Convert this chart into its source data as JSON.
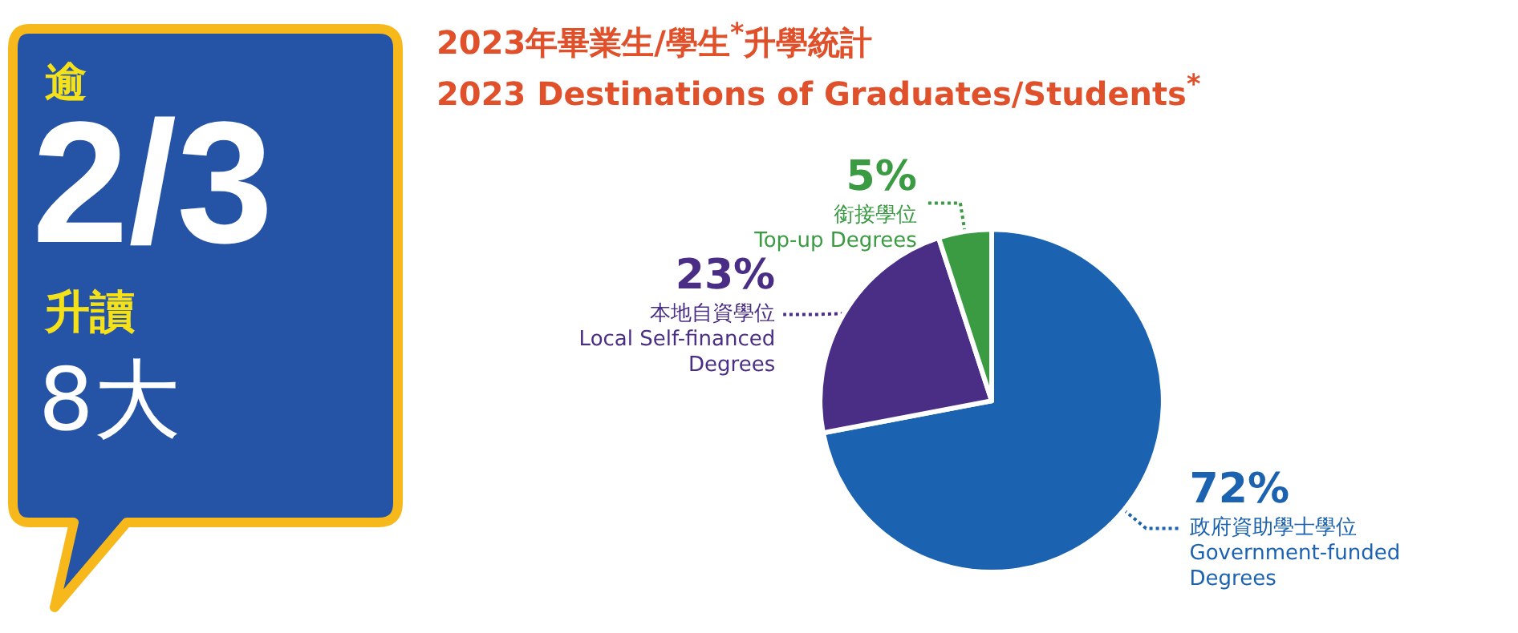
{
  "chart_data": {
    "type": "pie",
    "title": "2023年畢業生/學生$^{*}$升學統計",
    "subtitle": "2023 Destinations of Graduates/Students$^{*}$",
    "categories": [
      "政府資助學士學位\nGovernment-funded\nDegrees",
      "本地自資學位\nLocal Self-financed\nDegrees",
      "銜接學位\nTop-up Degrees"
    ],
    "values": [
      72,
      23,
      5
    ],
    "colors": [
      "#1b62b0",
      "#4a2d84",
      "#3a9b43"
    ],
    "value_labels": [
      "72%",
      "23%",
      "5%"
    ],
    "legend": false,
    "annotations": [
      "逾",
      "2/3",
      "升讀",
      "8大"
    ]
  }
}
